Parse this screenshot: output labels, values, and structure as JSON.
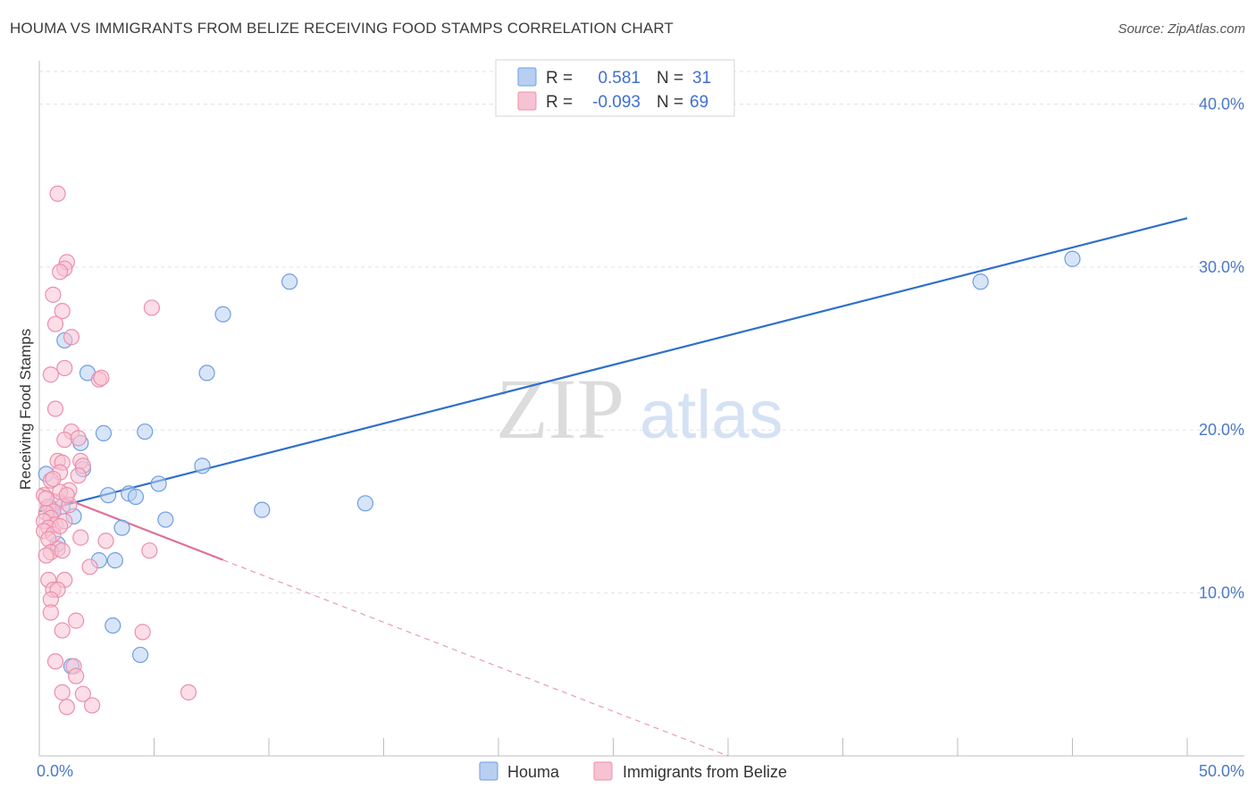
{
  "chart_data": {
    "type": "scatter",
    "title": "HOUMA VS IMMIGRANTS FROM BELIZE RECEIVING FOOD STAMPS CORRELATION CHART",
    "source": "Source: ZipAtlas.com",
    "ylabel": "Receiving Food Stamps",
    "xlabel": "",
    "xlim": [
      0,
      50
    ],
    "ylim": [
      0,
      42
    ],
    "x_tick_labels": [
      {
        "value": 0,
        "label": "0.0%"
      },
      {
        "value": 50,
        "label": "50.0%"
      }
    ],
    "y_tick_labels": [
      {
        "value": 10,
        "label": "10.0%"
      },
      {
        "value": 20,
        "label": "20.0%"
      },
      {
        "value": 30,
        "label": "30.0%"
      },
      {
        "value": 40,
        "label": "40.0%"
      }
    ],
    "legend_box": [
      {
        "series": "Houma",
        "r_label": "R =",
        "r_value": "0.581",
        "n_label": "N =",
        "n_value": "31"
      },
      {
        "series": "Immigrants from Belize",
        "r_label": "R =",
        "r_value": "-0.093",
        "n_label": "N =",
        "n_value": "69"
      }
    ],
    "watermark": {
      "zip": "ZIP",
      "atlas": "atlas"
    },
    "series": [
      {
        "name": "Houma",
        "color": "#6f9ee0",
        "fill": "#b8cff2",
        "trend": {
          "x0": 0,
          "y0": 15.0,
          "x1": 50,
          "y1": 33.0,
          "color": "#2f6fcb",
          "solid_to": 50
        },
        "points": [
          [
            0.3,
            17.3
          ],
          [
            0.5,
            15.2
          ],
          [
            0.8,
            13.0
          ],
          [
            1.0,
            15.3
          ],
          [
            1.1,
            25.5
          ],
          [
            1.5,
            14.7
          ],
          [
            1.8,
            19.2
          ],
          [
            1.9,
            17.6
          ],
          [
            2.1,
            23.5
          ],
          [
            1.4,
            5.5
          ],
          [
            2.6,
            12.0
          ],
          [
            2.8,
            19.8
          ],
          [
            3.0,
            16.0
          ],
          [
            3.3,
            12.0
          ],
          [
            3.6,
            14.0
          ],
          [
            3.9,
            16.1
          ],
          [
            4.2,
            15.9
          ],
          [
            4.6,
            19.9
          ],
          [
            5.2,
            16.7
          ],
          [
            5.5,
            14.5
          ],
          [
            3.2,
            8.0
          ],
          [
            4.4,
            6.2
          ],
          [
            7.1,
            17.8
          ],
          [
            7.3,
            23.5
          ],
          [
            8.0,
            27.1
          ],
          [
            9.7,
            15.1
          ],
          [
            10.9,
            29.1
          ],
          [
            14.2,
            15.5
          ],
          [
            41.0,
            29.1
          ],
          [
            45.0,
            30.5
          ],
          [
            0.6,
            15.0
          ]
        ]
      },
      {
        "name": "Immigrants from Belize",
        "color": "#ec8fac",
        "fill": "#f7c3d3",
        "trend": {
          "x0": 0,
          "y0": 16.4,
          "x1": 30,
          "y1": 0.0,
          "color": "#e07099",
          "solid_to": 8
        },
        "points": [
          [
            0.8,
            34.5
          ],
          [
            1.2,
            30.3
          ],
          [
            1.1,
            29.9
          ],
          [
            0.9,
            29.7
          ],
          [
            0.6,
            28.3
          ],
          [
            1.0,
            27.3
          ],
          [
            0.7,
            26.5
          ],
          [
            1.4,
            25.7
          ],
          [
            1.1,
            23.8
          ],
          [
            0.5,
            23.4
          ],
          [
            2.6,
            23.1
          ],
          [
            2.7,
            23.2
          ],
          [
            0.7,
            21.3
          ],
          [
            1.4,
            19.9
          ],
          [
            1.1,
            19.4
          ],
          [
            1.7,
            19.5
          ],
          [
            0.8,
            18.1
          ],
          [
            1.0,
            18.0
          ],
          [
            1.8,
            18.1
          ],
          [
            1.9,
            17.8
          ],
          [
            0.9,
            17.4
          ],
          [
            1.7,
            17.2
          ],
          [
            0.5,
            16.9
          ],
          [
            1.3,
            16.3
          ],
          [
            0.2,
            16.0
          ],
          [
            0.8,
            15.6
          ],
          [
            0.4,
            15.3
          ],
          [
            0.6,
            15.0
          ],
          [
            0.3,
            14.9
          ],
          [
            0.5,
            14.6
          ],
          [
            0.2,
            14.4
          ],
          [
            0.7,
            14.2
          ],
          [
            1.1,
            14.4
          ],
          [
            0.4,
            14.0
          ],
          [
            0.2,
            13.8
          ],
          [
            0.6,
            13.6
          ],
          [
            0.4,
            13.3
          ],
          [
            0.8,
            12.7
          ],
          [
            0.5,
            12.5
          ],
          [
            0.3,
            12.3
          ],
          [
            1.0,
            12.6
          ],
          [
            1.8,
            13.4
          ],
          [
            2.9,
            13.2
          ],
          [
            4.8,
            12.6
          ],
          [
            2.2,
            11.6
          ],
          [
            0.4,
            10.8
          ],
          [
            1.1,
            10.8
          ],
          [
            0.6,
            10.2
          ],
          [
            0.8,
            10.2
          ],
          [
            0.5,
            9.6
          ],
          [
            0.5,
            8.8
          ],
          [
            1.6,
            8.3
          ],
          [
            1.0,
            7.7
          ],
          [
            4.5,
            7.6
          ],
          [
            0.7,
            5.8
          ],
          [
            1.5,
            5.5
          ],
          [
            1.6,
            4.9
          ],
          [
            1.0,
            3.9
          ],
          [
            1.9,
            3.8
          ],
          [
            6.5,
            3.9
          ],
          [
            1.2,
            3.0
          ],
          [
            2.3,
            3.1
          ],
          [
            4.9,
            27.5
          ],
          [
            0.3,
            15.8
          ],
          [
            0.9,
            16.2
          ],
          [
            0.6,
            17.0
          ],
          [
            1.3,
            15.4
          ],
          [
            0.9,
            14.1
          ],
          [
            1.2,
            16.0
          ]
        ]
      }
    ]
  }
}
